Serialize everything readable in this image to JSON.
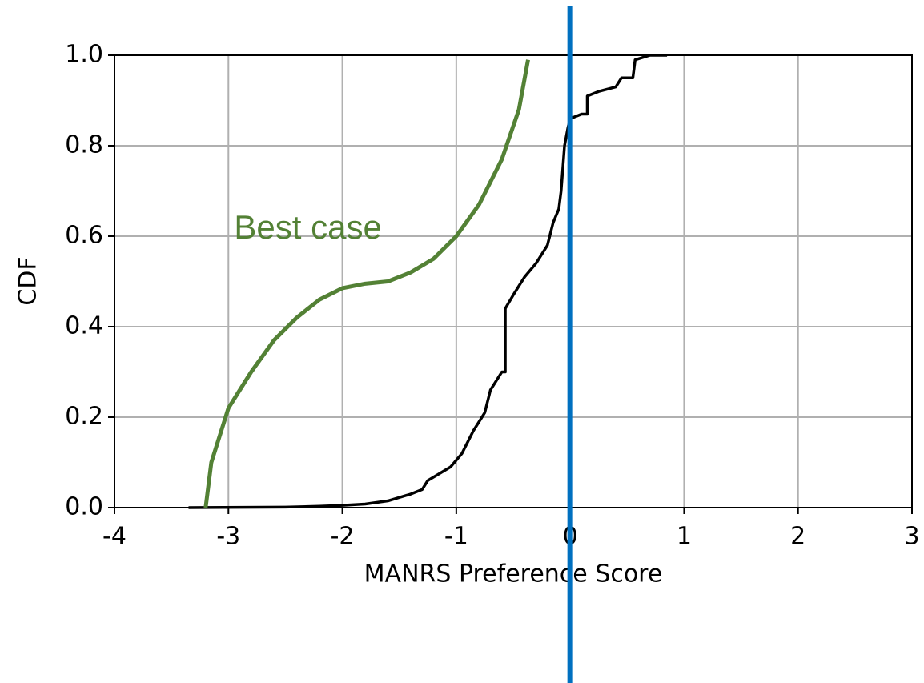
{
  "chart_data": {
    "type": "line",
    "xlabel": "MANRS Preference Score",
    "ylabel": "CDF",
    "xlim": [
      -4,
      3
    ],
    "ylim": [
      0,
      1
    ],
    "xticks": [
      -4,
      -3,
      -2,
      -1,
      0,
      1,
      2,
      3
    ],
    "yticks": [
      {
        "value": 0,
        "label": "0.0"
      },
      0.2,
      0.4,
      0.6,
      0.8,
      {
        "value": 1,
        "label": "1.0"
      }
    ],
    "grid": true,
    "series": [
      {
        "color": "#000000",
        "x": [
          -3.35,
          -2.5,
          -2.2,
          -2.0,
          -1.8,
          -1.6,
          -1.4,
          -1.3,
          -1.25,
          -1.15,
          -1.05,
          -0.95,
          -0.85,
          -0.8,
          -0.75,
          -0.7,
          -0.65,
          -0.6,
          -0.57,
          -0.57,
          -0.5,
          -0.4,
          -0.3,
          -0.2,
          -0.15,
          -0.1,
          -0.08,
          -0.05,
          -0.02,
          0.0,
          0.1,
          0.15,
          0.15,
          0.25,
          0.4,
          0.45,
          0.55,
          0.57,
          0.7,
          0.85
        ],
        "values": [
          0,
          0.001,
          0.003,
          0.005,
          0.008,
          0.015,
          0.03,
          0.04,
          0.06,
          0.075,
          0.09,
          0.12,
          0.17,
          0.19,
          0.21,
          0.26,
          0.28,
          0.3,
          0.3,
          0.44,
          0.47,
          0.51,
          0.54,
          0.58,
          0.63,
          0.66,
          0.7,
          0.8,
          0.84,
          0.86,
          0.87,
          0.87,
          0.91,
          0.92,
          0.93,
          0.95,
          0.95,
          0.99,
          1.0,
          1.0
        ]
      },
      {
        "color": "#538135",
        "x": [
          -3.2,
          -3.15,
          -3.0,
          -2.8,
          -2.6,
          -2.4,
          -2.2,
          -2.0,
          -1.8,
          -1.6,
          -1.4,
          -1.2,
          -1.0,
          -0.8,
          -0.6,
          -0.45,
          -0.37
        ],
        "values": [
          0,
          0.1,
          0.22,
          0.3,
          0.37,
          0.42,
          0.46,
          0.485,
          0.495,
          0.5,
          0.52,
          0.55,
          0.6,
          0.67,
          0.77,
          0.88,
          0.99
        ]
      }
    ],
    "vlines": [
      {
        "x": 0,
        "color": "#0070c0"
      }
    ],
    "annotations": [
      {
        "text": "Best case",
        "x": -2.95,
        "y": 0.6,
        "color": "#538135"
      }
    ]
  }
}
